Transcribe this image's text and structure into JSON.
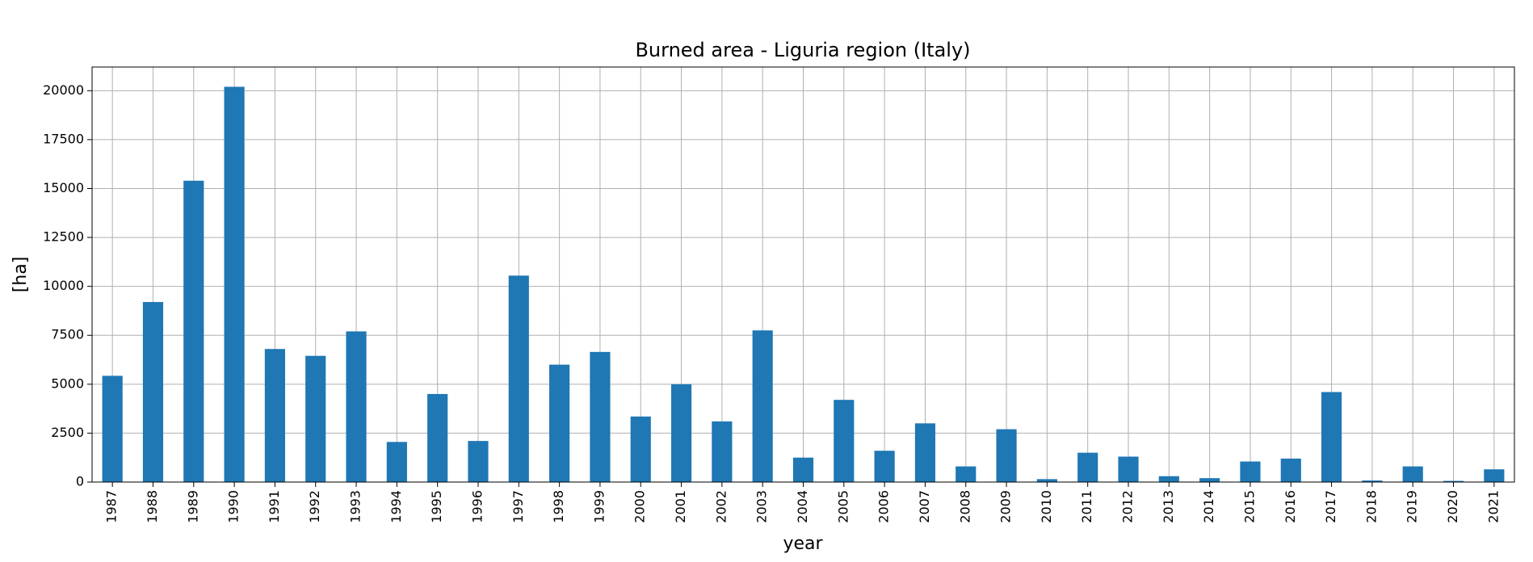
{
  "chart_data": {
    "type": "bar",
    "title": "Burned area - Liguria region (Italy)",
    "x_label": "year",
    "y_label": "[ha]",
    "categories": [
      "1987",
      "1988",
      "1989",
      "1990",
      "1991",
      "1992",
      "1993",
      "1994",
      "1995",
      "1996",
      "1997",
      "1998",
      "1999",
      "2000",
      "2001",
      "2002",
      "2003",
      "2004",
      "2005",
      "2006",
      "2007",
      "2008",
      "2009",
      "2010",
      "2011",
      "2012",
      "2013",
      "2014",
      "2015",
      "2016",
      "2017",
      "2018",
      "2019",
      "2020",
      "2021"
    ],
    "values": [
      5430,
      9200,
      15400,
      20200,
      6800,
      6450,
      7700,
      2050,
      4500,
      2100,
      10550,
      6000,
      6650,
      3350,
      5000,
      3100,
      7750,
      1250,
      4200,
      1600,
      3000,
      800,
      2700,
      150,
      1500,
      1300,
      300,
      200,
      1050,
      1200,
      4600,
      80,
      800,
      60,
      650
    ],
    "color": "#1f77b4",
    "ylim": [
      0,
      21210
    ],
    "yticks": [
      0,
      2500,
      5000,
      7500,
      10000,
      12500,
      15000,
      17500,
      20000
    ],
    "grid": true
  }
}
